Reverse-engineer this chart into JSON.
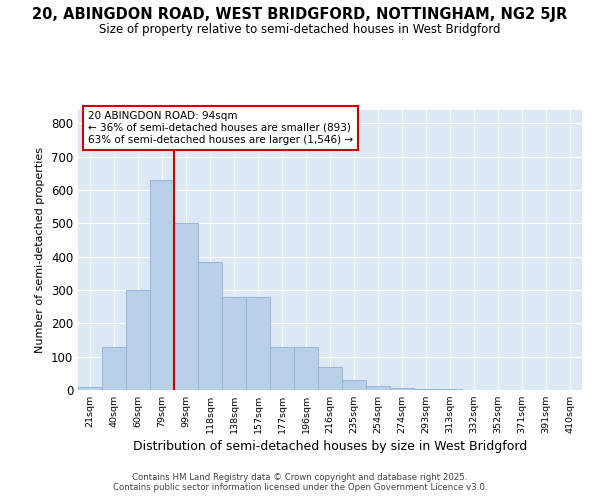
{
  "title": "20, ABINGDON ROAD, WEST BRIDGFORD, NOTTINGHAM, NG2 5JR",
  "subtitle": "Size of property relative to semi-detached houses in West Bridgford",
  "xlabel": "Distribution of semi-detached houses by size in West Bridgford",
  "ylabel": "Number of semi-detached properties",
  "bins": [
    "21sqm",
    "40sqm",
    "60sqm",
    "79sqm",
    "99sqm",
    "118sqm",
    "138sqm",
    "157sqm",
    "177sqm",
    "196sqm",
    "216sqm",
    "235sqm",
    "254sqm",
    "274sqm",
    "293sqm",
    "313sqm",
    "332sqm",
    "352sqm",
    "371sqm",
    "391sqm",
    "410sqm"
  ],
  "counts": [
    10,
    130,
    300,
    630,
    500,
    385,
    280,
    280,
    130,
    130,
    70,
    30,
    12,
    5,
    3,
    2,
    1,
    0,
    0,
    0,
    0
  ],
  "vline_bin": 4,
  "annotation_title": "20 ABINGDON ROAD: 94sqm",
  "annotation_line1": "← 36% of semi-detached houses are smaller (893)",
  "annotation_line2": "63% of semi-detached houses are larger (1,546) →",
  "bar_color": "#b8cfe8",
  "bar_edge_color": "#8ab0d8",
  "vline_color": "#cc0000",
  "bg_color": "#ffffff",
  "plot_bg_color": "#dce8f5",
  "footer_line1": "Contains HM Land Registry data © Crown copyright and database right 2025.",
  "footer_line2": "Contains public sector information licensed under the Open Government Licence v3.0.",
  "ylim": [
    0,
    840
  ],
  "yticks": [
    0,
    100,
    200,
    300,
    400,
    500,
    600,
    700,
    800
  ]
}
